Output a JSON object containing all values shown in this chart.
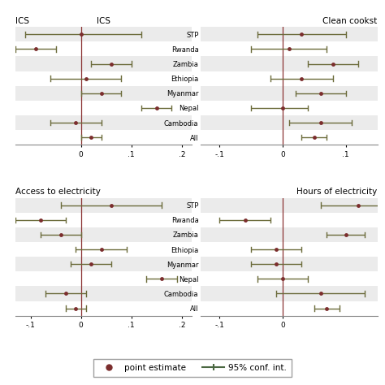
{
  "panels": [
    {
      "title": "ICS",
      "xlim": [
        -0.13,
        0.22
      ],
      "xticks": [
        0,
        0.1,
        0.2
      ],
      "xticklabels": [
        "0",
        ".1",
        ".2"
      ],
      "show_ylabels": false,
      "categories": [
        "STP",
        "Rwanda",
        "Zambia",
        "Ethiopia",
        "Myanmar",
        "Nepal",
        "Cambodia",
        "All"
      ],
      "point": [
        0.0,
        -0.09,
        0.06,
        0.01,
        0.04,
        0.15,
        -0.01,
        0.02
      ],
      "ci_low": [
        -0.11,
        -0.13,
        0.02,
        -0.06,
        0.0,
        0.12,
        -0.06,
        0.0
      ],
      "ci_high": [
        0.12,
        -0.05,
        0.1,
        0.08,
        0.08,
        0.18,
        0.04,
        0.04
      ]
    },
    {
      "title": "Clean cookst",
      "xlim": [
        -0.13,
        0.15
      ],
      "xticks": [
        -0.1,
        0,
        0.1
      ],
      "xticklabels": [
        "-.1",
        "0",
        ".1"
      ],
      "show_ylabels": true,
      "categories": [
        "STP",
        "Rwanda",
        "Zambia",
        "Ethiopia",
        "Myanmar",
        "Nepal",
        "Cambodia",
        "All"
      ],
      "point": [
        0.03,
        0.01,
        0.08,
        0.03,
        0.06,
        0.0,
        0.06,
        0.05
      ],
      "ci_low": [
        -0.04,
        -0.05,
        0.04,
        -0.02,
        0.02,
        -0.05,
        0.01,
        0.03
      ],
      "ci_high": [
        0.1,
        0.07,
        0.12,
        0.08,
        0.1,
        0.04,
        0.11,
        0.07
      ]
    },
    {
      "title": "Access to electricity",
      "xlim": [
        -0.13,
        0.22
      ],
      "xticks": [
        -0.1,
        0,
        0.1,
        0.2
      ],
      "xticklabels": [
        "-.1",
        "0",
        ".1",
        ".2"
      ],
      "show_ylabels": false,
      "categories": [
        "STP",
        "Rwanda",
        "Zambia",
        "Ethiopia",
        "Myanmar",
        "Nepal",
        "Cambodia",
        "All"
      ],
      "point": [
        0.06,
        -0.08,
        -0.04,
        0.04,
        0.02,
        0.16,
        -0.03,
        -0.01
      ],
      "ci_low": [
        -0.04,
        -0.13,
        -0.08,
        -0.01,
        -0.02,
        0.13,
        -0.07,
        -0.03
      ],
      "ci_high": [
        0.16,
        -0.03,
        0.0,
        0.09,
        0.06,
        0.19,
        0.01,
        0.01
      ]
    },
    {
      "title": "Hours of electricity",
      "xlim": [
        -0.13,
        0.15
      ],
      "xticks": [
        -0.1,
        0
      ],
      "xticklabels": [
        "-.1",
        "0"
      ],
      "show_ylabels": true,
      "categories": [
        "STP",
        "Rwanda",
        "Zambia",
        "Ethiopia",
        "Myanmar",
        "Nepal",
        "Cambodia",
        "All"
      ],
      "point": [
        0.12,
        -0.06,
        0.1,
        -0.01,
        -0.01,
        0.0,
        0.06,
        0.07
      ],
      "ci_low": [
        0.06,
        -0.1,
        0.07,
        -0.05,
        -0.05,
        -0.04,
        -0.01,
        0.05
      ],
      "ci_high": [
        0.18,
        -0.02,
        0.13,
        0.03,
        0.03,
        0.04,
        0.13,
        0.09
      ]
    }
  ],
  "point_color": "#7B2D2D",
  "ci_color": "#6B6B3A",
  "vline_color": "#8B3333",
  "bg_color": "#FFFFFF",
  "stripe_color": "#EBEBEB",
  "legend_point_color": "#7B2D2D",
  "legend_ci_color": "#4A6741"
}
